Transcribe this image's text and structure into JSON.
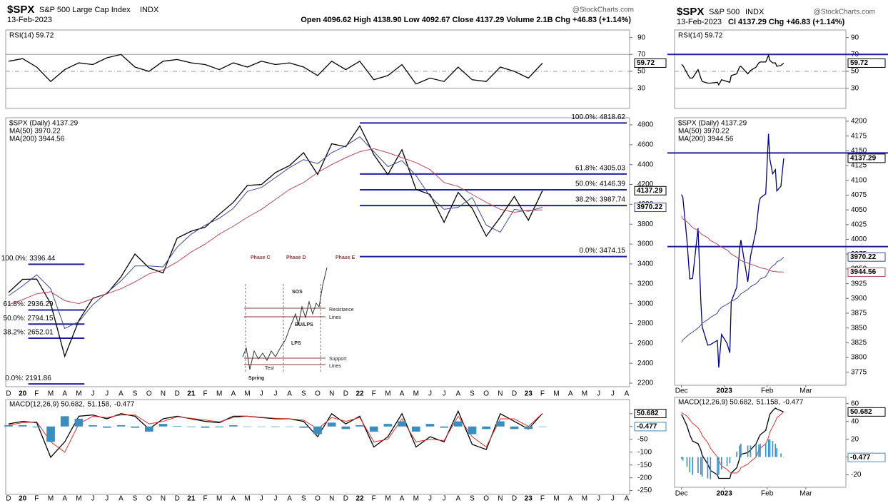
{
  "headers": [
    {
      "symbol": "$SPX",
      "name": "S&P 500 Large Cap Index",
      "exchange": "INDX",
      "source": "@StockCharts.com",
      "date": "13-Feb-2023",
      "quote": "Open 4096.62  High 4138.90  Low 4092.67  Close 4137.29  Volume 2.1B  Chg +46.83 (+1.14%)"
    },
    {
      "symbol": "$SPX",
      "name": "S&P 500",
      "exchange": "INDX",
      "source": "@StockCharts.com",
      "date": "13-Feb-2023",
      "quote": "Cl 4137.29  Chg +46.83 (+1.14%)"
    }
  ],
  "inset": {
    "labels": [
      "Phase C",
      "Phase D",
      "Phase E",
      "SOS",
      "Resistance",
      "Lines",
      "BU/LPS",
      "LPS",
      "Support",
      "Lines",
      "Test",
      "Spring"
    ]
  },
  "chart_data": [
    {
      "type": "line",
      "ylim": [
        6,
        99
      ],
      "yticks": [
        90,
        70,
        50,
        30
      ],
      "hlines": [
        {
          "value": 70,
          "color": "#999999"
        },
        {
          "value": 50,
          "color": "#999999",
          "dash": true
        },
        {
          "value": 30,
          "color": "#999999"
        }
      ],
      "series": [
        {
          "name": "RSI(14) 59.72",
          "color": "#000000",
          "values": [
            62,
            65,
            55,
            38,
            52,
            60,
            58,
            66,
            70,
            55,
            50,
            62,
            64,
            60,
            58,
            52,
            60,
            55,
            62,
            58,
            60,
            55,
            45,
            62,
            52,
            62,
            40,
            45,
            58,
            35,
            42,
            38,
            55,
            40,
            38,
            55,
            50,
            42,
            59.72,
            null,
            null,
            null,
            null,
            null,
            null
          ]
        }
      ],
      "tags": [
        {
          "value": 59.72,
          "color": "#000000"
        }
      ]
    },
    {
      "type": "line",
      "ylim": [
        2164,
        4872
      ],
      "yticks": [
        2200,
        2400,
        2600,
        2800,
        3000,
        3200,
        3400,
        3600,
        3800,
        4000,
        4200,
        4400,
        4600,
        4800
      ],
      "categories": [
        "D",
        "20",
        "F",
        "M",
        "A",
        "M",
        "J",
        "J",
        "A",
        "S",
        "O",
        "N",
        "D",
        "21",
        "F",
        "M",
        "A",
        "M",
        "J",
        "J",
        "A",
        "S",
        "O",
        "N",
        "D",
        "22",
        "F",
        "M",
        "A",
        "M",
        "J",
        "J",
        "A",
        "S",
        "O",
        "N",
        "D",
        "23",
        "F",
        "M",
        "A",
        "M",
        "J",
        "J",
        "A"
      ],
      "series": [
        {
          "name": "$SPX (Daily) 4137.29",
          "color": "#000000",
          "values": [
            3113,
            3245,
            3248,
            3000,
            2470,
            2830,
            3055,
            3100,
            3270,
            3500,
            3360,
            3310,
            3660,
            3730,
            3770,
            3900,
            4020,
            4190,
            4200,
            4320,
            4390,
            4520,
            4300,
            4610,
            4580,
            4790,
            4500,
            4300,
            4550,
            4150,
            4100,
            3820,
            4120,
            3960,
            3680,
            3870,
            4080,
            3840,
            4137.29,
            null,
            null,
            null,
            null,
            null,
            null
          ]
        },
        {
          "name": "MA(50) 3970.22",
          "color": "#3d4a9c",
          "values": [
            3080,
            3180,
            3290,
            3150,
            2750,
            2820,
            2990,
            3110,
            3230,
            3380,
            3380,
            3370,
            3570,
            3700,
            3790,
            3860,
            3960,
            4130,
            4170,
            4270,
            4370,
            4450,
            4410,
            4520,
            4590,
            4680,
            4530,
            4380,
            4440,
            4290,
            4080,
            3950,
            3970,
            4070,
            3790,
            3720,
            3950,
            3930,
            3970.22,
            null,
            null,
            null,
            null,
            null,
            null
          ]
        },
        {
          "name": "MA(200) 3944.56",
          "color": "#b5485c",
          "values": [
            2990,
            3040,
            3100,
            3120,
            3030,
            3000,
            3050,
            3100,
            3150,
            3220,
            3300,
            3340,
            3420,
            3520,
            3600,
            3700,
            3780,
            3870,
            3950,
            4050,
            4150,
            4220,
            4320,
            4400,
            4470,
            4530,
            4560,
            4520,
            4470,
            4420,
            4350,
            4220,
            4180,
            4100,
            4020,
            3950,
            3920,
            3940,
            3944.56,
            null,
            null,
            null,
            null,
            null,
            null
          ]
        }
      ],
      "fibs": [
        {
          "color": "#1f1fa0",
          "levels": [
            {
              "value": 4818.62,
              "label": "100.0%: 4818.62"
            },
            {
              "value": 4305.03,
              "label": "61.8%: 4305.03"
            },
            {
              "value": 4146.39,
              "label": "50.0%: 4146.39"
            },
            {
              "value": 3987.74,
              "label": "38.2%: 3987.74"
            },
            {
              "value": 3474.15,
              "label": "0.0%: 3474.15"
            }
          ]
        },
        {
          "color": "#1f1fa0",
          "levels": [
            {
              "value": 3396.44,
              "label": "100.0%: 3396.44"
            },
            {
              "value": 2936.29,
              "label": "61.8%: 2936.29"
            },
            {
              "value": 2794.15,
              "label": "50.0%: 2794.15"
            },
            {
              "value": 2652.01,
              "label": "38.2%: 2652.01"
            },
            {
              "value": 2191.86,
              "label": "0.0%: 2191.86"
            }
          ]
        }
      ],
      "tags": [
        {
          "value": 4137.29,
          "color": "#000000"
        },
        {
          "value": 3970.22,
          "color": "#3d4a9c"
        }
      ]
    },
    {
      "type": "line",
      "ylim": [
        -265,
        105
      ],
      "yticks": [
        50,
        0,
        -50,
        -100,
        -150,
        -200,
        -250
      ],
      "categories": [
        "D",
        "20",
        "F",
        "M",
        "A",
        "M",
        "J",
        "J",
        "A",
        "S",
        "O",
        "N",
        "D",
        "21",
        "F",
        "M",
        "A",
        "M",
        "J",
        "J",
        "A",
        "S",
        "O",
        "N",
        "D",
        "22",
        "F",
        "M",
        "A",
        "M",
        "J",
        "J",
        "A",
        "S",
        "O",
        "N",
        "D",
        "23",
        "F",
        "M",
        "A",
        "M",
        "J",
        "J",
        "A"
      ],
      "legend": "inline",
      "series": [
        {
          "name": "MACD(12,26,9) 50.682,",
          "color": "#000000",
          "values": [
            10,
            20,
            15,
            -120,
            -60,
            40,
            45,
            30,
            50,
            40,
            -10,
            30,
            40,
            30,
            20,
            15,
            40,
            40,
            35,
            30,
            30,
            20,
            -40,
            50,
            10,
            40,
            -80,
            -40,
            50,
            -80,
            -40,
            -60,
            60,
            -70,
            -90,
            50,
            20,
            -10,
            50.682,
            null,
            null,
            null,
            null,
            null,
            null
          ]
        },
        {
          "name": "51.158,",
          "color": "#e0332c",
          "values": [
            5,
            15,
            18,
            -60,
            -100,
            10,
            40,
            35,
            45,
            45,
            10,
            20,
            38,
            32,
            25,
            18,
            35,
            40,
            36,
            32,
            30,
            25,
            -10,
            35,
            20,
            35,
            -60,
            -50,
            30,
            -60,
            -50,
            -55,
            40,
            -40,
            -80,
            30,
            30,
            0,
            51.158,
            null,
            null,
            null,
            null,
            null,
            null
          ]
        },
        {
          "name": "-0.477",
          "color": "#3a8dbf",
          "kind": "histogram",
          "values": [
            5,
            5,
            -3,
            -60,
            40,
            30,
            5,
            -5,
            5,
            -5,
            -20,
            10,
            2,
            -2,
            -5,
            -3,
            5,
            0,
            -1,
            -2,
            0,
            -5,
            -30,
            15,
            -10,
            5,
            -20,
            10,
            20,
            -20,
            10,
            -5,
            20,
            -30,
            -10,
            20,
            -10,
            -10,
            -0.477,
            null,
            null,
            null,
            null,
            null,
            null
          ]
        }
      ],
      "tags": [
        {
          "value": 50.682,
          "color": "#000000"
        },
        {
          "value": -0.477,
          "color": "#3a8dbf"
        }
      ]
    },
    {
      "type": "line",
      "ylim": [
        6,
        99
      ],
      "yticks": [
        90,
        70,
        50,
        30
      ],
      "xlim": [
        -5,
        119
      ],
      "x": [
        0,
        1,
        4,
        6,
        8,
        12,
        14,
        15,
        19,
        21,
        26,
        27,
        29,
        33,
        35,
        36,
        40,
        42,
        43,
        48,
        50,
        54,
        56,
        57,
        61,
        63,
        64,
        66,
        68,
        69,
        72,
        74
      ],
      "hlines": [
        {
          "value": 70,
          "color": "#1f1fa0",
          "wide": true
        },
        {
          "value": 50,
          "color": "#999999",
          "dash": true
        },
        {
          "value": 30,
          "color": "#999999"
        }
      ],
      "series": [
        {
          "name": "RSI(14) 59.72",
          "color": "#000000",
          "values": [
            58,
            57,
            48,
            42,
            42,
            52,
            42,
            38,
            36,
            36,
            37,
            34,
            40,
            38,
            37,
            45,
            47,
            55,
            56,
            47,
            51,
            55,
            60,
            61,
            61,
            69,
            63,
            60,
            60,
            56,
            57,
            59.72
          ]
        }
      ],
      "tags": [
        {
          "value": 59.72,
          "color": "#000000"
        }
      ]
    },
    {
      "type": "line",
      "ylim": [
        3753,
        4206
      ],
      "yticks": [
        3775,
        3800,
        3825,
        3850,
        3875,
        3900,
        3925,
        3950,
        3975,
        4000,
        4025,
        4050,
        4075,
        4100,
        4125,
        4150,
        4175,
        4200
      ],
      "xlim": [
        -5,
        119
      ],
      "x": [
        0,
        1,
        4,
        6,
        8,
        12,
        14,
        15,
        19,
        21,
        26,
        27,
        29,
        33,
        35,
        36,
        40,
        42,
        43,
        48,
        50,
        54,
        56,
        57,
        61,
        63,
        64,
        66,
        68,
        69,
        72,
        74
      ],
      "xticks": [
        {
          "value": 0,
          "label": "Dec"
        },
        {
          "value": 31,
          "label": "2023"
        },
        {
          "value": 62,
          "label": "Feb"
        },
        {
          "value": 90,
          "label": "Mar"
        }
      ],
      "hlines": [
        {
          "value": 4146.39,
          "color": "#1f1fa0",
          "wide": true,
          "thick": true
        },
        {
          "value": 3987.74,
          "color": "#1f1fa0",
          "wide": true,
          "thick": true
        }
      ],
      "series": [
        {
          "name": "$SPX (Daily) 4137.29",
          "color": "#000080",
          "values": [
            4076,
            4071,
            3998,
            3933,
            3934,
            4019,
            3895,
            3852,
            3821,
            3822,
            3829,
            3783,
            3839,
            3824,
            3808,
            3895,
            3919,
            3983,
            3999,
            3928,
            3972,
            4016,
            4060,
            4070,
            4077,
            4179,
            4136,
            4111,
            4118,
            4082,
            4090,
            4137.29
          ]
        },
        {
          "name": "MA(50) 3970.22",
          "color": "#3d4a9c",
          "values": [
            3826,
            3830,
            3836,
            3840,
            3843,
            3850,
            3855,
            3858,
            3864,
            3868,
            3875,
            3880,
            3885,
            3890,
            3893,
            3895,
            3900,
            3905,
            3908,
            3915,
            3920,
            3925,
            3930,
            3933,
            3937,
            3945,
            3950,
            3955,
            3958,
            3962,
            3965,
            3970.22
          ]
        },
        {
          "name": "MA(200) 3944.56",
          "color": "#b5485c",
          "values": [
            4040,
            4035,
            4030,
            4025,
            4020,
            4015,
            4010,
            4008,
            4003,
            3998,
            3992,
            3990,
            3987,
            3982,
            3978,
            3975,
            3970,
            3966,
            3964,
            3960,
            3958,
            3955,
            3953,
            3952,
            3950,
            3948,
            3947,
            3946,
            3946,
            3945,
            3945,
            3944.56
          ]
        }
      ],
      "tags": [
        {
          "value": 4137.29,
          "color": "#000000"
        },
        {
          "value": 3970.22,
          "color": "#3d4a9c"
        },
        {
          "value": 3944.56,
          "color": "#b5485c"
        }
      ]
    },
    {
      "type": "line",
      "ylim": [
        -34,
        67
      ],
      "yticks": [
        60,
        40,
        20,
        0,
        -20
      ],
      "xlim": [
        -5,
        119
      ],
      "x": [
        0,
        1,
        4,
        6,
        8,
        12,
        14,
        15,
        19,
        21,
        26,
        27,
        29,
        33,
        35,
        36,
        40,
        42,
        43,
        48,
        50,
        54,
        56,
        57,
        61,
        63,
        64,
        66,
        68,
        69,
        72,
        74
      ],
      "xticks": [
        {
          "value": 0,
          "label": "Dec"
        },
        {
          "value": 31,
          "label": "2023"
        },
        {
          "value": 62,
          "label": "Feb"
        },
        {
          "value": 90,
          "label": "Mar"
        }
      ],
      "legend": "inline",
      "series": [
        {
          "name": "MACD(12,26,9) 50.682,",
          "color": "#000000",
          "values": [
            48,
            45,
            35,
            25,
            18,
            15,
            8,
            2,
            -8,
            -15,
            -20,
            -24,
            -24,
            -24,
            -24,
            -18,
            -12,
            -2,
            3,
            5,
            8,
            15,
            22,
            25,
            30,
            42,
            48,
            52,
            55,
            54,
            52,
            50.682
          ]
        },
        {
          "name": "51.158,",
          "color": "#e0332c",
          "values": [
            50,
            49,
            46,
            42,
            38,
            33,
            28,
            24,
            16,
            10,
            0,
            -4,
            -10,
            -14,
            -17,
            -18,
            -18,
            -15,
            -12,
            -8,
            -5,
            0,
            8,
            10,
            15,
            22,
            28,
            34,
            40,
            44,
            48,
            51.158
          ]
        },
        {
          "name": "-0.477",
          "color": "#3a8dbf",
          "kind": "histogram",
          "values": [
            -2,
            -4,
            -11,
            -17,
            -20,
            -18,
            -20,
            -22,
            -24,
            -25,
            -20,
            -20,
            -14,
            -10,
            -7,
            0,
            6,
            13,
            15,
            13,
            13,
            15,
            14,
            15,
            15,
            20,
            20,
            18,
            15,
            10,
            4,
            -0.477
          ]
        }
      ],
      "tags": [
        {
          "value": 50.682,
          "color": "#000000"
        },
        {
          "value": -0.477,
          "color": "#3a8dbf"
        }
      ]
    }
  ]
}
